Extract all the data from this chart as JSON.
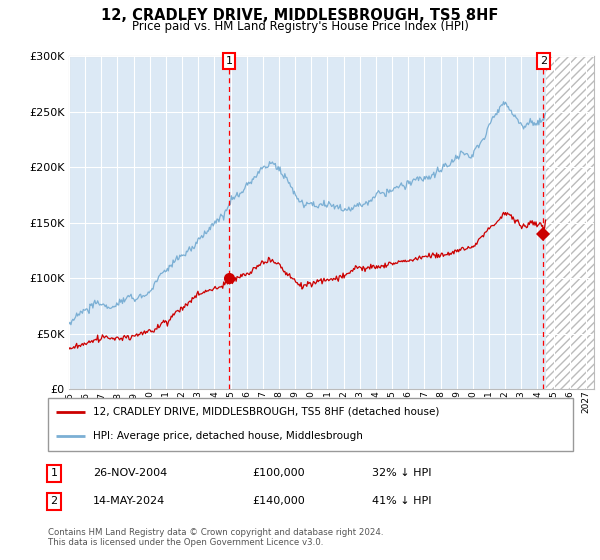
{
  "title": "12, CRADLEY DRIVE, MIDDLESBROUGH, TS5 8HF",
  "subtitle": "Price paid vs. HM Land Registry's House Price Index (HPI)",
  "ylim": [
    0,
    300000
  ],
  "yticks": [
    0,
    50000,
    100000,
    150000,
    200000,
    250000,
    300000
  ],
  "xlim_start": 1995.0,
  "xlim_end": 2027.5,
  "hpi_color": "#7bafd4",
  "price_color": "#cc0000",
  "marker1_year": 2004.9,
  "marker1_price": 100000,
  "marker2_year": 2024.37,
  "marker2_price": 140000,
  "legend_line1": "12, CRADLEY DRIVE, MIDDLESBROUGH, TS5 8HF (detached house)",
  "legend_line2": "HPI: Average price, detached house, Middlesbrough",
  "note1_num": "1",
  "note1_date": "26-NOV-2004",
  "note1_price": "£100,000",
  "note1_hpi": "32% ↓ HPI",
  "note2_num": "2",
  "note2_date": "14-MAY-2024",
  "note2_price": "£140,000",
  "note2_hpi": "41% ↓ HPI",
  "footer": "Contains HM Land Registry data © Crown copyright and database right 2024.\nThis data is licensed under the Open Government Licence v3.0.",
  "bg_color": "#dce9f5",
  "hatch_bg": "#e8e8e8",
  "grid_color": "#ffffff"
}
